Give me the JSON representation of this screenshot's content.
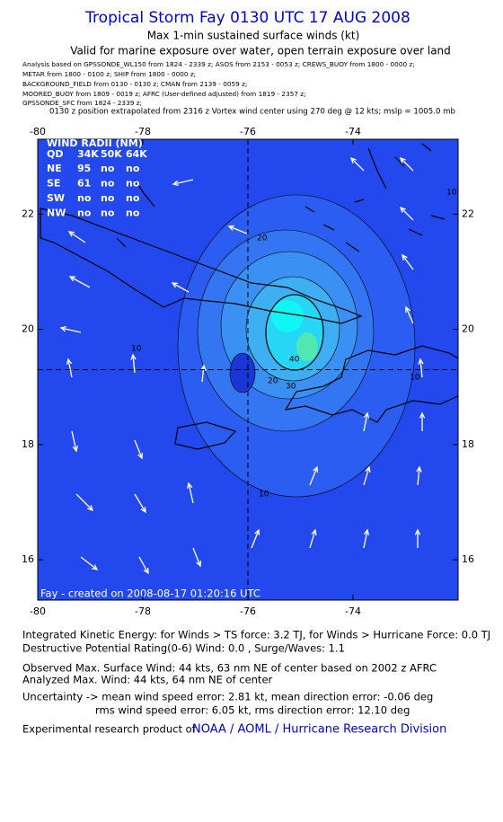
{
  "header": {
    "title": "Tropical Storm Fay 0130 UTC 17 AUG 2008",
    "subtitle": "Max 1-min sustained surface winds (kt)",
    "validity": "Valid for marine exposure over water, open terrain exposure over land",
    "analysis_lines": [
      "Analysis based on  GPSSONDE_WL150 from 1824 - 2339 z;  ASOS from 2153 - 0053 z;  CREWS_BUOY from 1800 - 0000 z;",
      "METAR from 1800 - 0100 z;  SHIP from 1800 - 0000 z;",
      "BACKGROUND_FIELD from 0130 - 0130 z;  CMAN from 2139 - 0059 z;",
      "MOORED_BUOY from 1809 - 0019 z;  AFRC  (User-defined adjusted) from 1819 - 2357 z;",
      "GPSSONDE_SFC from 1824 - 2339 z;"
    ],
    "position_line": "0130 z position extrapolated from 2316 z Vortex wind center using 270 deg @ 12 kts; mslp = 1005.0 mb"
  },
  "map": {
    "xlim": [
      -80,
      -72
    ],
    "ylim": [
      15.3,
      23.3
    ],
    "xticks": [
      -80,
      -78,
      -76,
      -74
    ],
    "yticks": [
      16,
      18,
      20,
      22
    ],
    "center": [
      -76,
      19.3
    ],
    "contour_levels": [
      10,
      20,
      30,
      40,
      10,
      10,
      10,
      20
    ],
    "wind_radii": {
      "title": "WIND RADII (NM)",
      "header": [
        "QD",
        "34K",
        "50K",
        "64K"
      ],
      "rows": [
        [
          "NE",
          "95",
          "no",
          "no"
        ],
        [
          "SE",
          "61",
          "no",
          "no"
        ],
        [
          "SW",
          "no",
          "no",
          "no"
        ],
        [
          "NW",
          "no",
          "no",
          "no"
        ]
      ]
    },
    "credit": "Fay - created on 2008-08-17 01:20:16 UTC"
  },
  "footer": {
    "lines": [
      "Integrated Kinetic Energy:  for Winds > TS force: 3.2 TJ,  for Winds > Hurricane Force: 0.0 TJ",
      "Destructive Potential Rating(0-6)   Wind: 0.0 , Surge/Waves: 1.1",
      "Observed Max. Surface Wind: 44 kts, 63 nm NE of center based on 2002 z AFRC",
      "Analyzed Max. Wind: 44 kts, 64 nm NE of center",
      "Uncertainty -> mean wind speed error: 2.81 kt,   mean direction error:  -0.06 deg",
      "rms wind speed error: 6.05 kt,   rms direction error: 12.10 deg"
    ],
    "product": "Experimental research product of",
    "org": "NOAA / AOML / Hurricane Research Division"
  }
}
